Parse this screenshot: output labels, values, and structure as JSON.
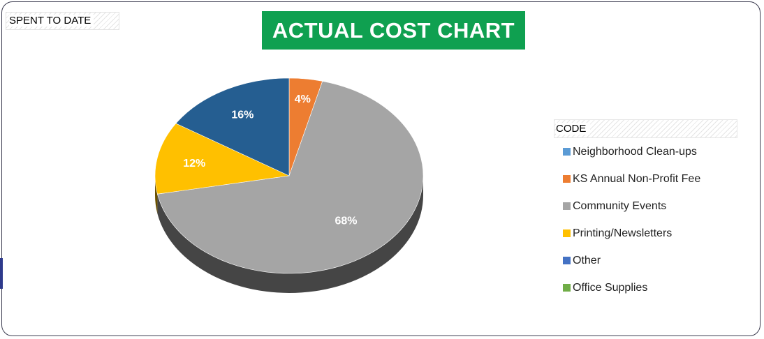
{
  "chart_data": {
    "type": "pie",
    "title": "ACTUAL COST CHART",
    "field_button": "SPENT TO DATE",
    "legend_title": "CODE",
    "legend_position": "right",
    "categories": [
      "Neighborhood Clean-ups",
      "KS Annual Non-Profit Fee",
      "Community Events",
      "Printing/Newsletters",
      "Other",
      "Office Supplies"
    ],
    "values": [
      0,
      4,
      68,
      12,
      16,
      0
    ],
    "data_labels": [
      "",
      "4%",
      "68%",
      "12%",
      "16%",
      ""
    ],
    "colors": [
      "#5b9bd5",
      "#ed7d31",
      "#a5a5a5",
      "#ffc000",
      "#4472c4",
      "#70ad47"
    ],
    "slice_colors": [
      "#5b9bd5",
      "#ed7d31",
      "#a5a5a5",
      "#ffc000",
      "#255e91",
      "#70ad47"
    ],
    "style": "3d-pie"
  }
}
